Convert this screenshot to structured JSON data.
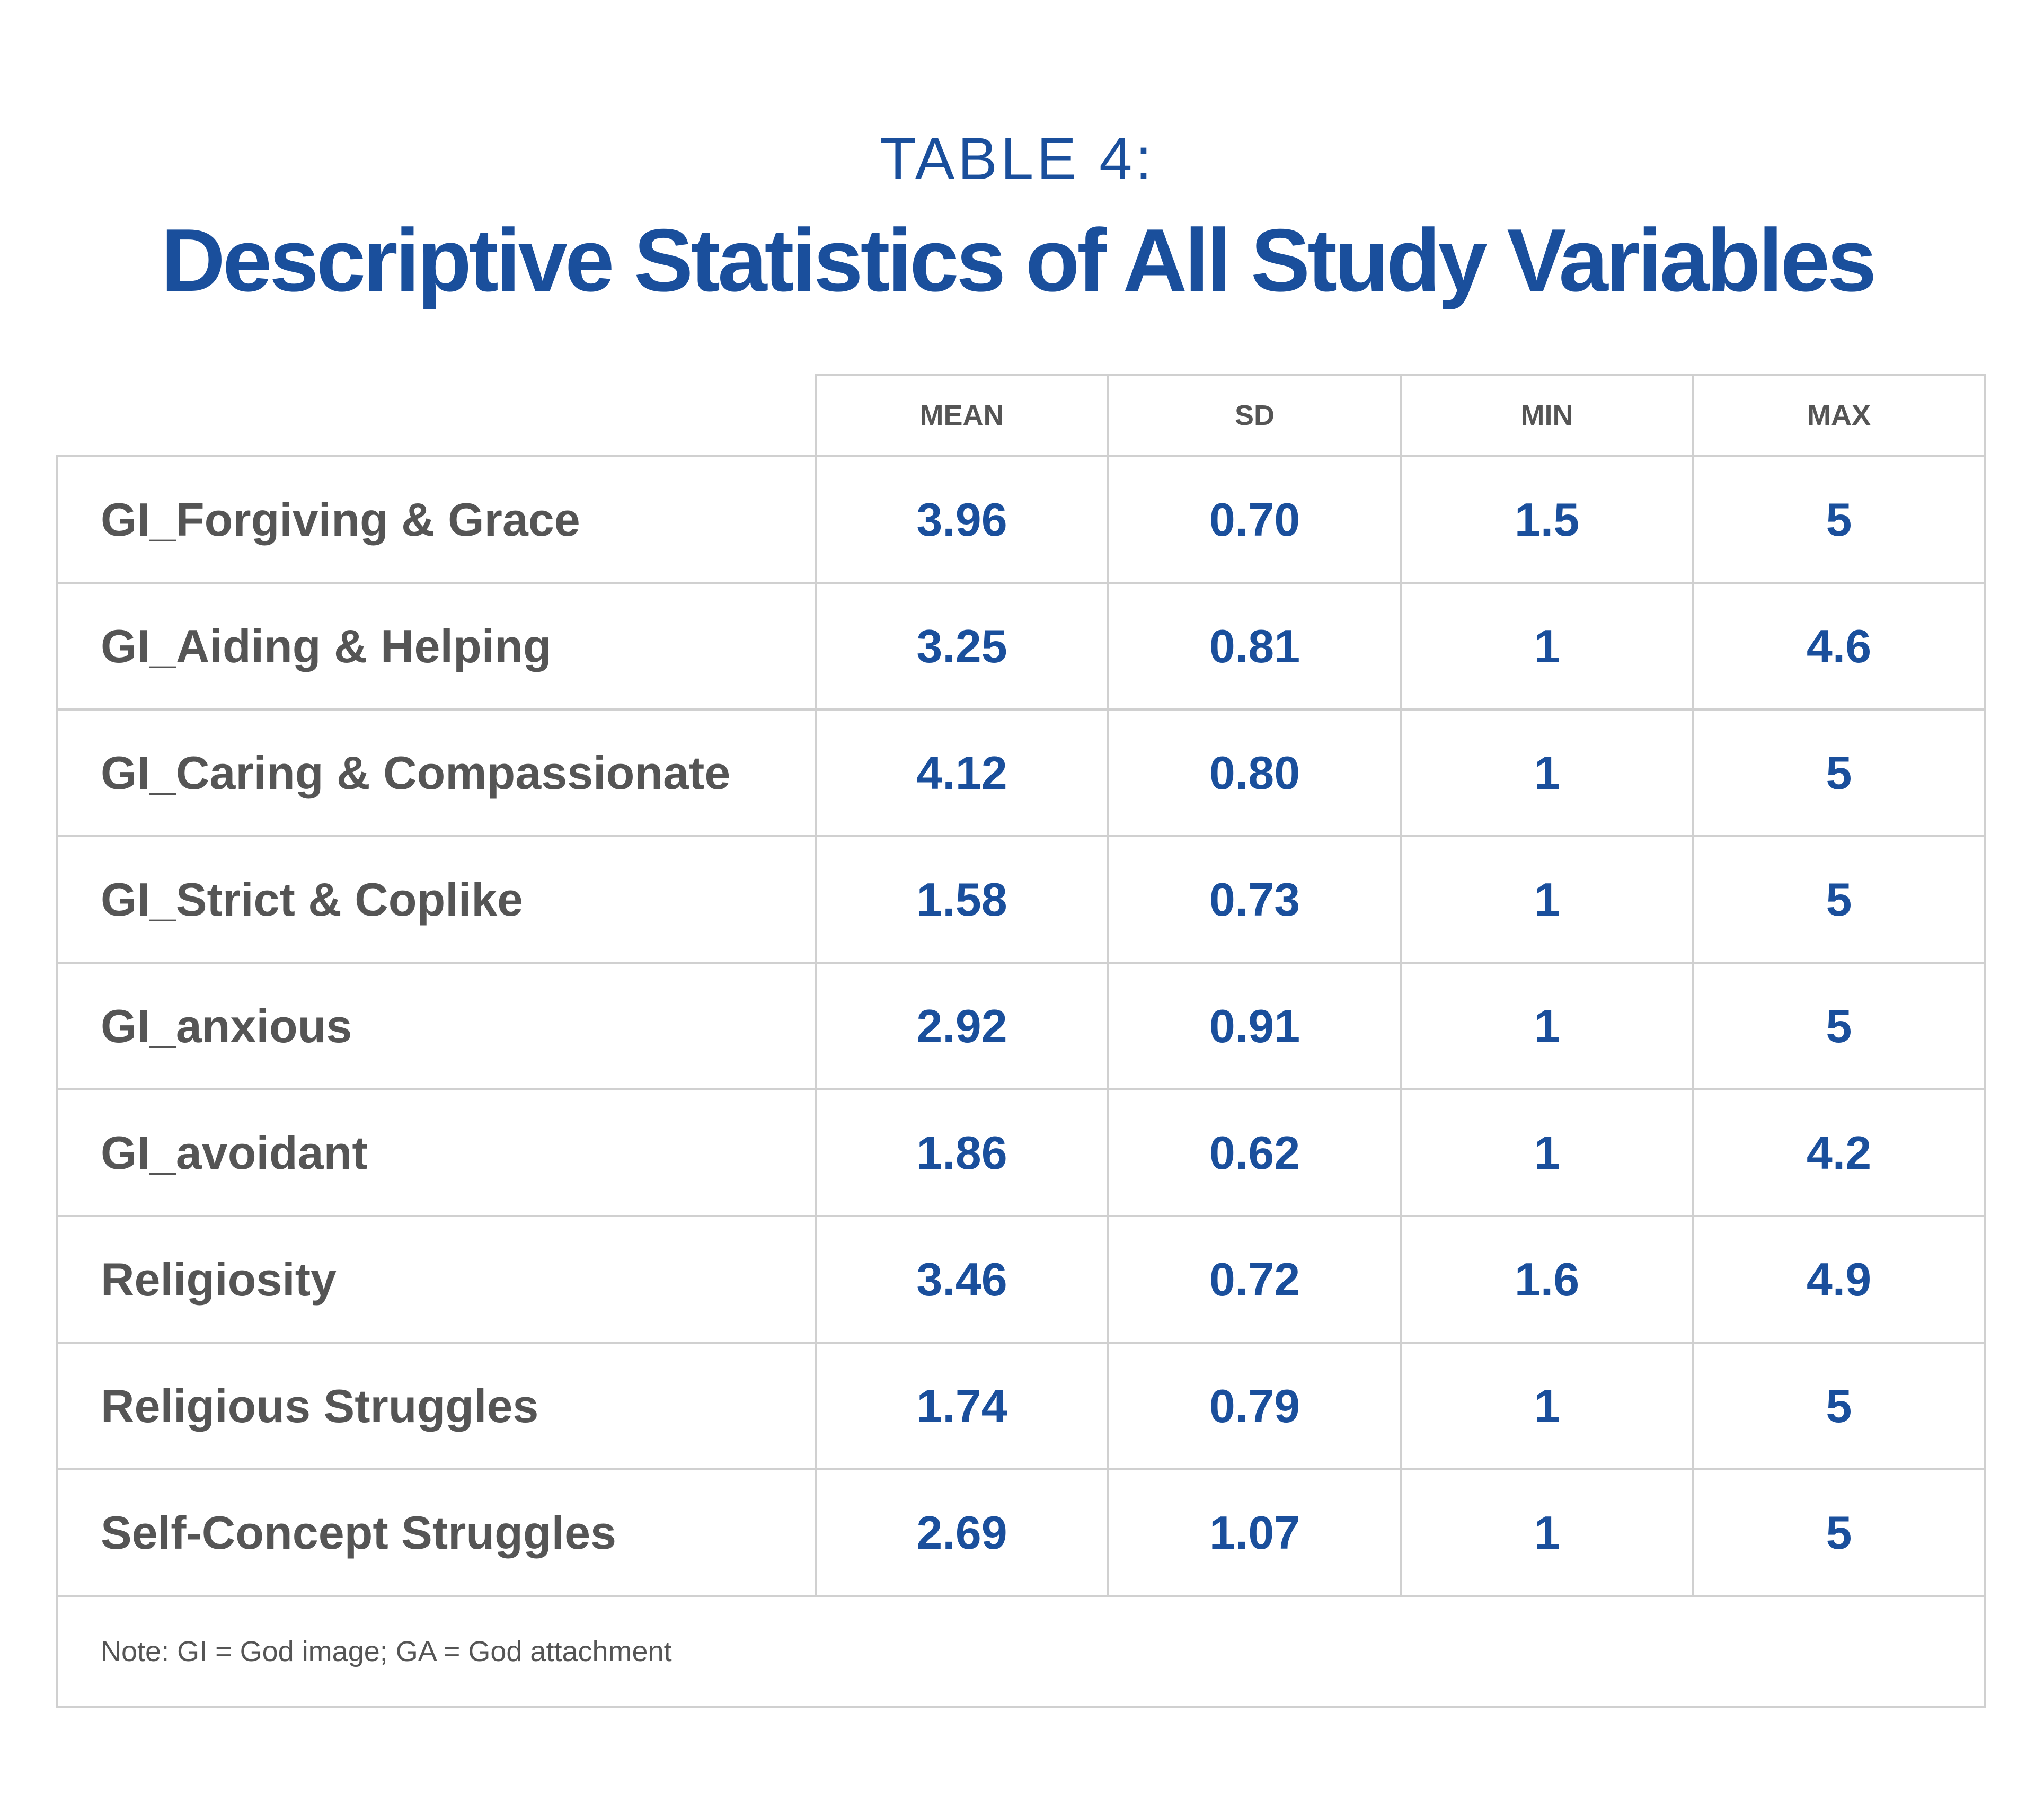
{
  "header": {
    "label": "TABLE 4:",
    "title": "Descriptive Statistics of All Study Variables"
  },
  "table": {
    "columns": [
      "MEAN",
      "SD",
      "MIN",
      "MAX"
    ],
    "rows": [
      [
        "GI_Forgiving & Grace",
        "3.96",
        "0.70",
        "1.5",
        "5"
      ],
      [
        "GI_Aiding & Helping",
        "3.25",
        "0.81",
        "1",
        "4.6"
      ],
      [
        "GI_Caring & Compassionate",
        "4.12",
        "0.80",
        "1",
        "5"
      ],
      [
        "GI_Strict & Coplike",
        "1.58",
        "0.73",
        "1",
        "5"
      ],
      [
        "GI_anxious",
        "2.92",
        "0.91",
        "1",
        "5"
      ],
      [
        "GI_avoidant",
        "1.86",
        "0.62",
        "1",
        "4.2"
      ],
      [
        "Religiosity",
        "3.46",
        "0.72",
        "1.6",
        "4.9"
      ],
      [
        "Religious Struggles",
        "1.74",
        "0.79",
        "1",
        "5"
      ],
      [
        "Self-Concept Struggles",
        "2.69",
        "1.07",
        "1",
        "5"
      ]
    ],
    "note": "Note: GI = God image; GA = God attachment"
  }
}
